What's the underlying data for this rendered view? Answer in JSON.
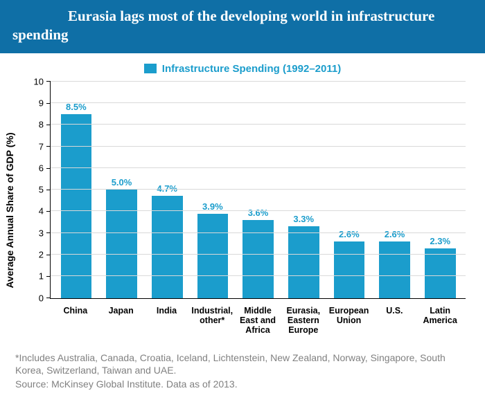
{
  "header": {
    "title": "Eurasia lags most of the developing world in infrastructure spending",
    "bg_color": "#0f6fa6"
  },
  "legend": {
    "label": "Infrastructure Spending (1992–2011)",
    "color": "#1b9dcc"
  },
  "chart": {
    "type": "bar",
    "ylabel": "Average Annual Share of GDP (%)",
    "ylim_max": 10,
    "ytick_step": 1,
    "bar_color": "#1b9dcc",
    "value_text_color": "#1b9dcc",
    "grid_color": "#d9d9d9",
    "background_color": "#ffffff",
    "bar_width_pct": 68,
    "categories": [
      "China",
      "Japan",
      "India",
      "Industrial, other*",
      "Middle East and Africa",
      "Eurasia, Eastern Europe",
      "European Union",
      "U.S.",
      "Latin America"
    ],
    "values": [
      8.5,
      5.0,
      4.7,
      3.9,
      3.6,
      3.3,
      2.6,
      2.6,
      2.3
    ],
    "value_labels": [
      "8.5%",
      "5.0%",
      "4.7%",
      "3.9%",
      "3.6%",
      "3.3%",
      "2.6%",
      "2.6%",
      "2.3%"
    ]
  },
  "footnote": "*Includes Australia, Canada, Croatia, Iceland, Lichtenstein, New Zealand, Norway, Singapore, South Korea, Switzerland, Taiwan and UAE.",
  "source": "Source: McKinsey Global Institute. Data as of 2013."
}
